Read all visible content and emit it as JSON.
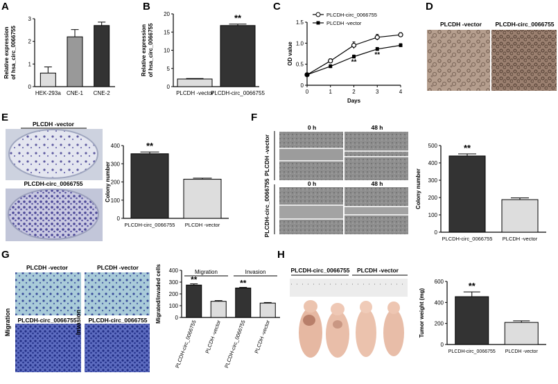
{
  "chart_data": [
    {
      "panel": "A",
      "type": "bar",
      "categories": [
        "HEK-293a",
        "CNE-1",
        "CNE-2"
      ],
      "values": [
        0.6,
        2.2,
        2.7
      ],
      "errors": [
        0.27,
        0.32,
        0.15
      ],
      "colors": [
        "#dddddd",
        "#999999",
        "#333333"
      ],
      "ylabel": "Relative expression of hsa_circ_0066755",
      "ylim": [
        0,
        3
      ],
      "yticks": [
        0,
        1,
        2,
        3
      ]
    },
    {
      "panel": "B",
      "type": "bar",
      "categories": [
        "PLCDH -vector",
        "PLCDH-circ_0066755"
      ],
      "values": [
        2.1,
        16.8
      ],
      "errors": [
        0.15,
        0.4
      ],
      "colors": [
        "#dddddd",
        "#333333"
      ],
      "ylabel": "Relative expression of hsa_circ_0066755",
      "ylim": [
        0,
        20
      ],
      "yticks": [
        0,
        5,
        10,
        15,
        20
      ],
      "annotation": "**"
    },
    {
      "panel": "C",
      "type": "line",
      "x": [
        0,
        1,
        2,
        3,
        4
      ],
      "series": [
        {
          "name": "PLCDH-circ_0066755",
          "values": [
            0.25,
            0.58,
            0.95,
            1.14,
            1.2
          ],
          "errors": [
            0.02,
            0.05,
            0.08,
            0.07,
            0.05
          ]
        },
        {
          "name": "PLCDH -vector",
          "values": [
            0.25,
            0.45,
            0.68,
            0.86,
            0.95
          ],
          "errors": [
            0.02,
            0.04,
            0.04,
            0.04,
            0.04
          ]
        }
      ],
      "xlabel": "Days",
      "ylabel": "OD value",
      "ylim": [
        0,
        1.5
      ],
      "yticks": [
        0,
        0.5,
        1.0,
        1.5
      ],
      "ytick_labels": [
        "0",
        "0.5",
        "1.0",
        "1.5"
      ],
      "annotations": [
        "**",
        "**"
      ]
    },
    {
      "panel": "E",
      "type": "bar",
      "categories": [
        "PLCDH-circ_0066755",
        "PLCDH -vector"
      ],
      "values": [
        355,
        215
      ],
      "errors": [
        10,
        6
      ],
      "colors": [
        "#333333",
        "#dddddd"
      ],
      "ylabel": "Colony number",
      "ylim": [
        0,
        400
      ],
      "yticks": [
        0,
        100,
        200,
        300,
        400
      ],
      "annotation": "**"
    },
    {
      "panel": "F",
      "type": "bar",
      "categories": [
        "PLCDH-circ_0066755",
        "PLCDH -vector"
      ],
      "values": [
        440,
        188
      ],
      "errors": [
        12,
        10
      ],
      "colors": [
        "#333333",
        "#dddddd"
      ],
      "ylabel": "Colony number",
      "ylim": [
        0,
        500
      ],
      "yticks": [
        0,
        100,
        200,
        300,
        400,
        500
      ],
      "annotation": "**"
    },
    {
      "panel": "G",
      "type": "bar",
      "categories": [
        "PLCDH-circ_0066755",
        "PLCDH -vector",
        "PLCDH-circ_0066755",
        "PLCDH -vector"
      ],
      "groups": [
        "Migration",
        "Invasion"
      ],
      "values": [
        275,
        137,
        250,
        122
      ],
      "errors": [
        10,
        6,
        5,
        5
      ],
      "colors": [
        "#333333",
        "#dddddd",
        "#333333",
        "#dddddd"
      ],
      "ylabel": "Migrated/invaded cells",
      "ylim": [
        0,
        400
      ],
      "yticks": [
        0,
        100,
        200,
        300,
        400
      ],
      "annotations": [
        "**",
        "**"
      ]
    },
    {
      "panel": "H",
      "type": "bar",
      "categories": [
        "PLCDH-circ_0066755",
        "PLCDH -vector"
      ],
      "values": [
        455,
        210
      ],
      "errors": [
        45,
        15
      ],
      "colors": [
        "#333333",
        "#dddddd"
      ],
      "ylabel": "Tumor weight (mg)",
      "ylim": [
        0,
        600
      ],
      "yticks": [
        0,
        200,
        400,
        600
      ],
      "annotation": "**"
    }
  ],
  "panels": {
    "a": "A",
    "b": "B",
    "c": "C",
    "d": "D",
    "e": "E",
    "f": "F",
    "g": "G",
    "h": "H"
  },
  "images": {
    "d_left": "PLCDH -vector",
    "d_right": "PLCDH-circ_0066755",
    "e_top": "PLCDH -vector",
    "e_bottom": "PLCDH-circ_0066755",
    "f_row1": "PLCDH -vector",
    "f_row2": "PLCDH-circ_0066755",
    "f_col1": "0 h",
    "f_col2": "48 h",
    "g_tl": "PLCDH -vector",
    "g_tr": "PLCDH -vector",
    "g_bl": "PLCDH-circ_0066755",
    "g_br": "PLCDH-circ_0066755",
    "g_side1": "Migration",
    "g_side2": "Invasion",
    "h_left": "PLCDH-circ_0066755",
    "h_right": "PLCDH -vector"
  }
}
